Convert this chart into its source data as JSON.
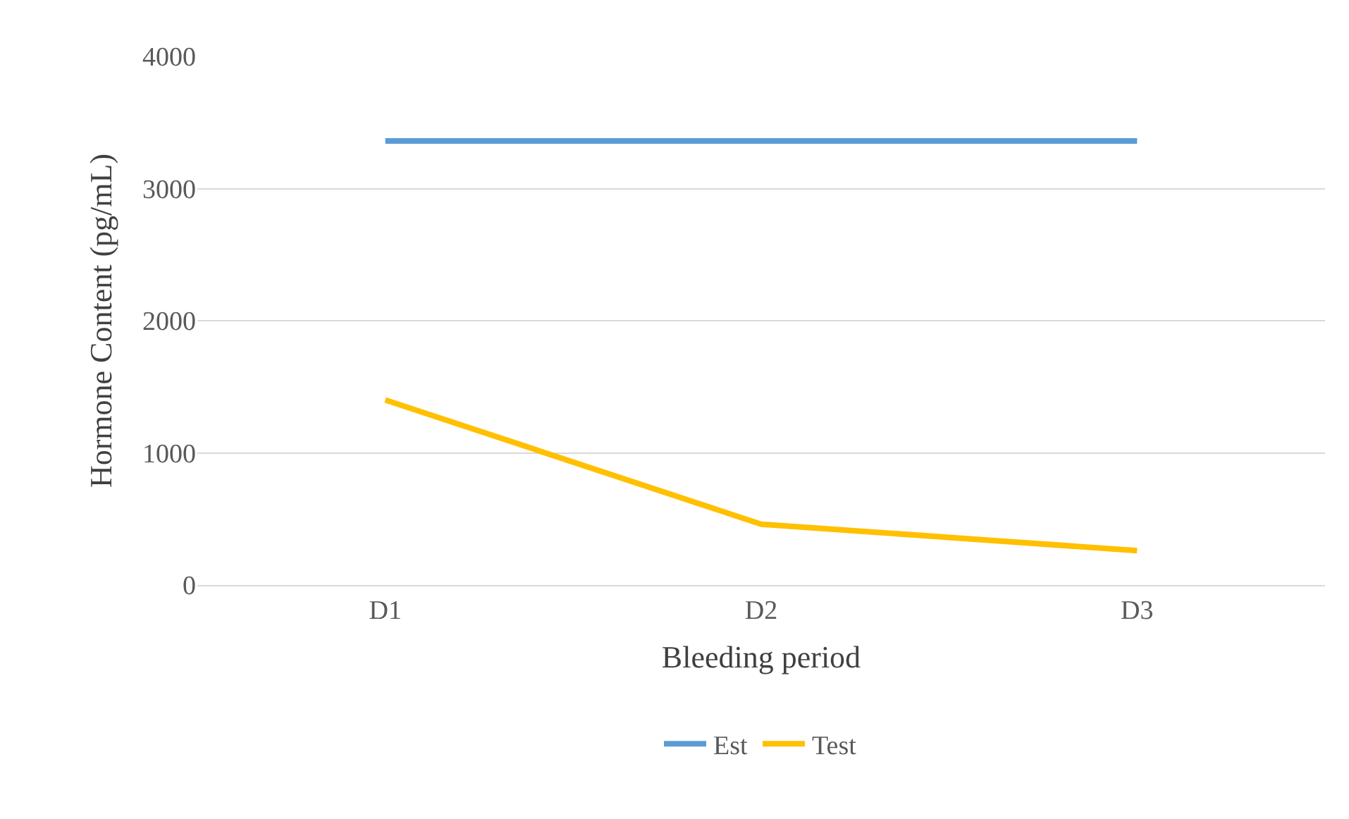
{
  "chart_data": {
    "type": "line",
    "xlabel": "Bleeding period",
    "ylabel": "Hormone Content (pg/mL)",
    "categories": [
      "D1",
      "D2",
      "D3"
    ],
    "series": [
      {
        "name": "Est",
        "color": "#5b9bd5",
        "values": [
          3360,
          3360,
          3360
        ]
      },
      {
        "name": "Test",
        "color": "#ffc000",
        "values": [
          1400,
          460,
          260
        ]
      }
    ],
    "ylim": [
      0,
      4000
    ],
    "yticks": [
      0,
      1000,
      2000,
      3000,
      4000
    ],
    "grid": "y",
    "legend": "bottom",
    "marker": "none",
    "line_style": "solid"
  }
}
